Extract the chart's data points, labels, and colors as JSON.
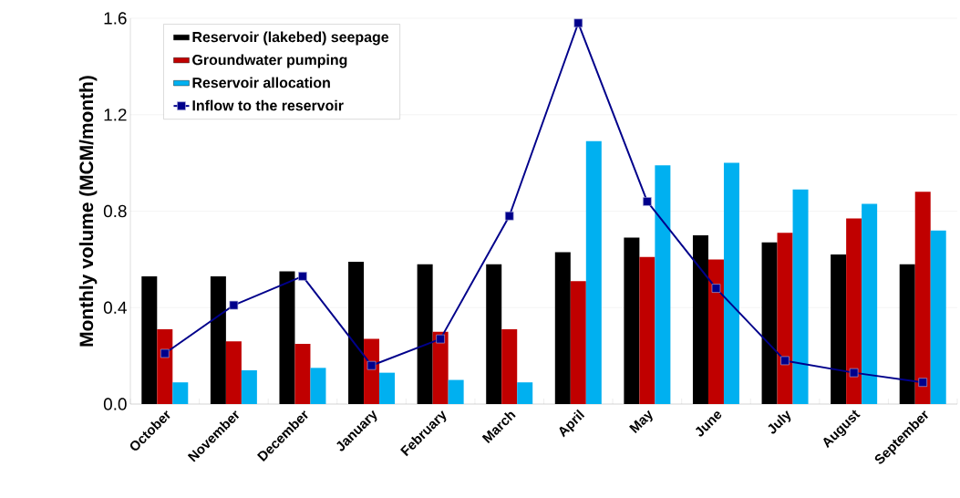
{
  "chart_data": {
    "type": "bar",
    "ylabel": "Monthly volume (MCM/month)",
    "categories": [
      "October",
      "November",
      "December",
      "January",
      "February",
      "March",
      "April",
      "May",
      "June",
      "July",
      "August",
      "September"
    ],
    "series": [
      {
        "name": "Reservoir (lakebed) seepage",
        "color": "#000000",
        "values": [
          0.53,
          0.53,
          0.55,
          0.59,
          0.58,
          0.58,
          0.63,
          0.69,
          0.7,
          0.67,
          0.62,
          0.58
        ]
      },
      {
        "name": "Groundwater pumping",
        "color": "#c00000",
        "values": [
          0.31,
          0.26,
          0.25,
          0.27,
          0.3,
          0.31,
          0.51,
          0.61,
          0.6,
          0.71,
          0.77,
          0.88
        ]
      },
      {
        "name": "Reservoir allocation",
        "color": "#00b0f0",
        "values": [
          0.09,
          0.14,
          0.15,
          0.13,
          0.1,
          0.09,
          1.09,
          0.99,
          1.0,
          0.89,
          0.83,
          0.72
        ]
      },
      {
        "name": "Inflow to the reservoir",
        "type": "line",
        "color": "#00008b",
        "marker": "square",
        "values": [
          0.21,
          0.41,
          0.53,
          0.16,
          0.27,
          0.78,
          1.58,
          0.84,
          0.48,
          0.18,
          0.13,
          0.09
        ]
      }
    ],
    "ylim": [
      0,
      1.6
    ],
    "yticks": [
      {
        "value": 0,
        "label": "0.0"
      },
      0.4,
      0.8,
      1.2,
      1.6
    ],
    "grid": "y",
    "legend": "top left"
  }
}
